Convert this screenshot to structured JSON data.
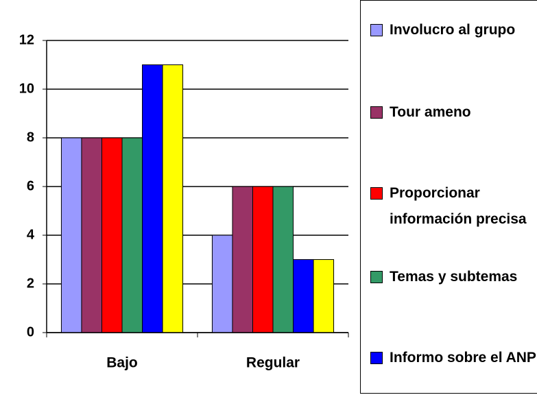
{
  "chart_data": {
    "type": "bar",
    "categories": [
      "Bajo",
      "Regular"
    ],
    "series": [
      {
        "name": "Involucro al grupo",
        "color": "#9999ff",
        "values": [
          8,
          4
        ]
      },
      {
        "name": "Tour ameno",
        "color": "#993366",
        "values": [
          8,
          6
        ]
      },
      {
        "name": "Proporcionar información precisa",
        "color": "#ff0000",
        "values": [
          8,
          6
        ]
      },
      {
        "name": "Temas y subtemas",
        "color": "#339966",
        "values": [
          8,
          6
        ]
      },
      {
        "name": "Informo sobre el ANP",
        "color": "#0000ff",
        "values": [
          11,
          3
        ]
      },
      {
        "color": "#ffff00",
        "values": [
          11,
          3
        ]
      }
    ],
    "ylim": [
      0,
      12
    ],
    "yticks": [
      0,
      2,
      4,
      6,
      8,
      10,
      12
    ],
    "grid": true,
    "legend": "right"
  }
}
